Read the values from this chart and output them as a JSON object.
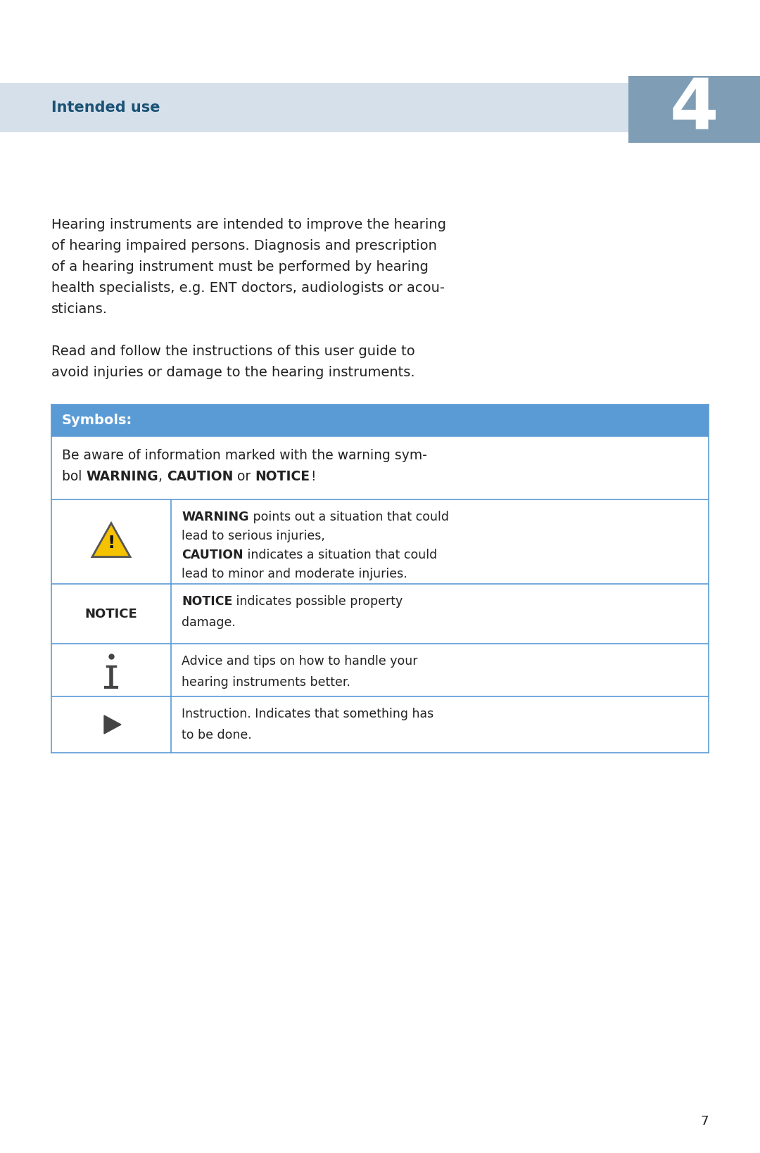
{
  "page_bg": "#ffffff",
  "header_bg": "#d6e0ea",
  "header_text": "Intended use",
  "header_text_color": "#1a5276",
  "chapter_box_bg": "#7f9db5",
  "chapter_number": "4",
  "chapter_number_color": "#ffffff",
  "para1_lines": [
    "Hearing instruments are intended to improve the hearing",
    "of hearing impaired persons. Diagnosis and prescription",
    "of a hearing instrument must be performed by hearing",
    "health specialists, e.g. ENT doctors, audiologists or acou-",
    "sticians."
  ],
  "para2_lines": [
    "Read and follow the instructions of this user guide to",
    "avoid injuries or damage to the hearing instruments."
  ],
  "table_header_bg": "#5b9bd5",
  "table_header_text": "Symbols:",
  "table_header_text_color": "#ffffff",
  "table_border_color": "#5b9bd5",
  "text_color": "#222222",
  "page_number": "7"
}
